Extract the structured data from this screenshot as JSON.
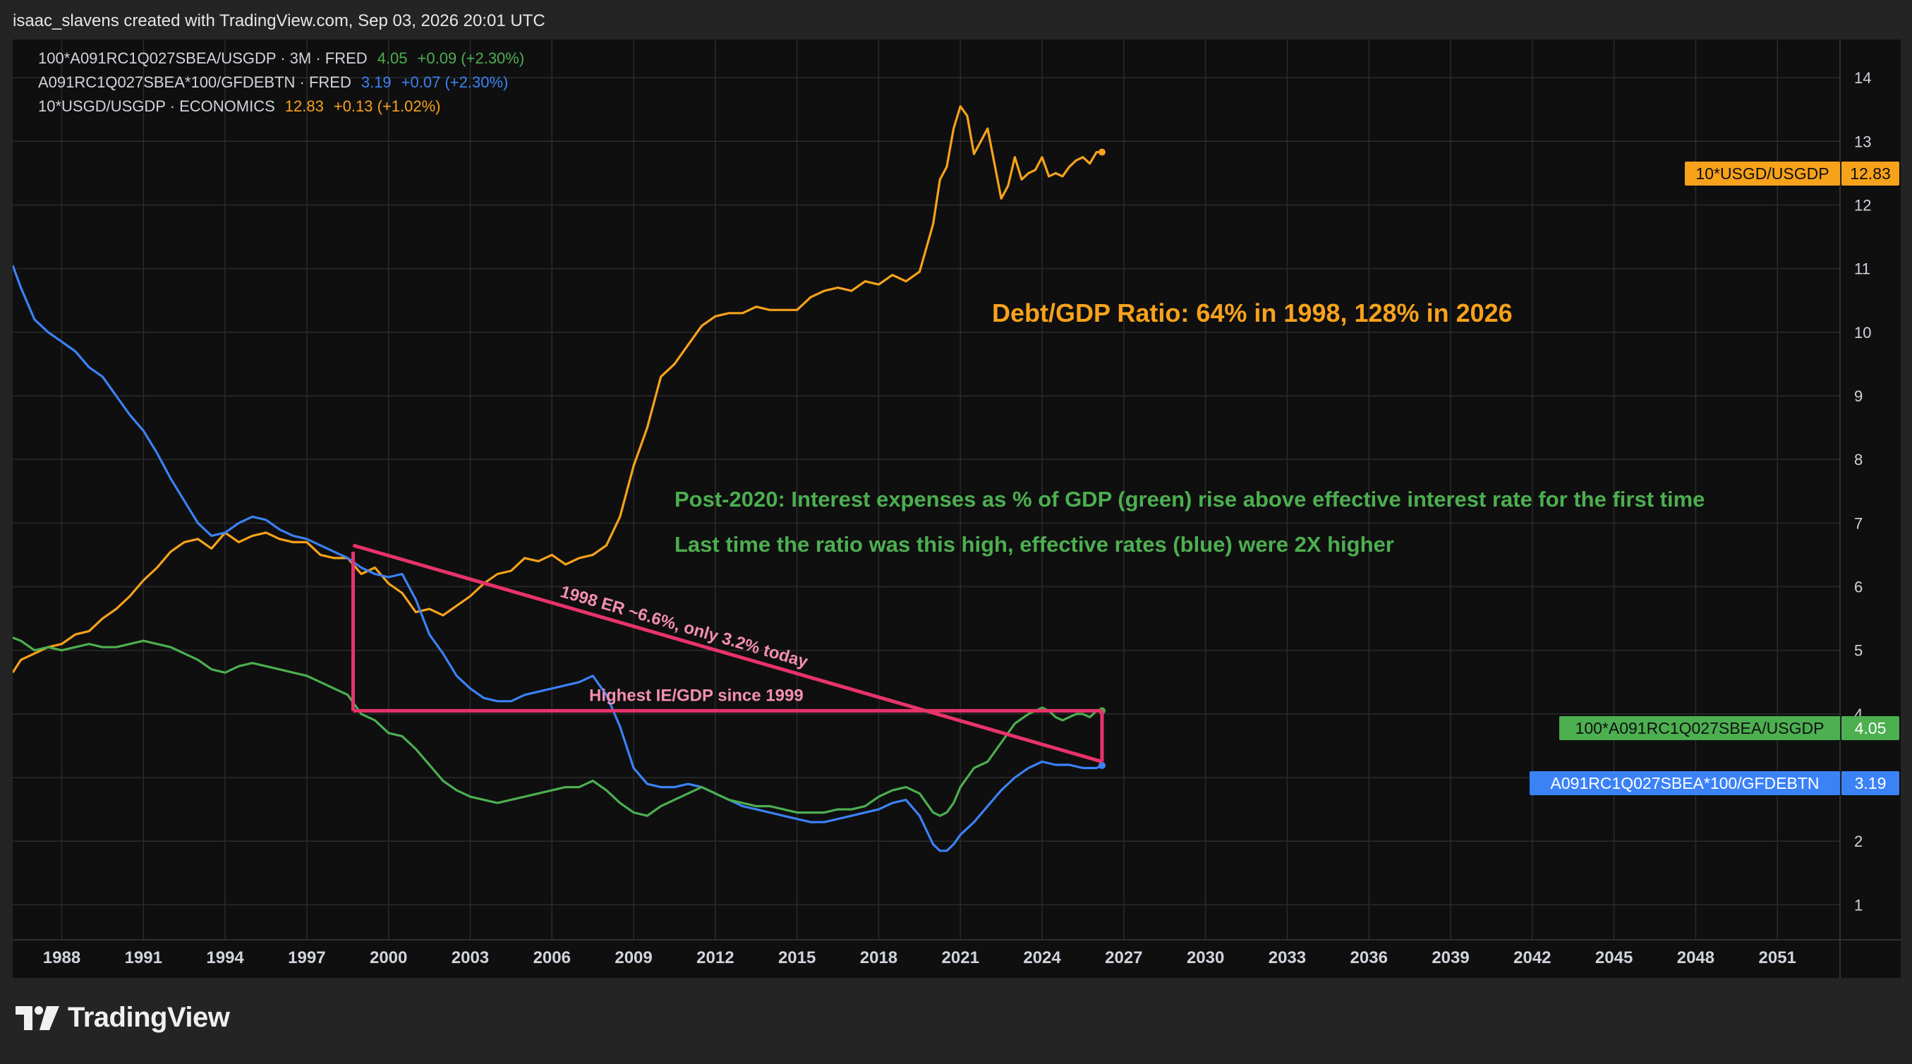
{
  "header": {
    "credit": "isaac_slavens created with TradingView.com, Sep 03, 2026 20:01 UTC"
  },
  "legend": [
    {
      "name": "100*A091RC1Q027SBEA/USGDP · 3M · FRED",
      "value": "4.05",
      "change": "+0.09 (+2.30%)",
      "color": "#4caf50"
    },
    {
      "name": "A091RC1Q027SBEA*100/GFDEBTN · FRED",
      "value": "3.19",
      "change": "+0.07 (+2.30%)",
      "color": "#3b82f6"
    },
    {
      "name": "10*USGD/USGDP · ECONOMICS",
      "value": "12.83",
      "change": "+0.13 (+1.02%)",
      "color": "#f7a21b"
    }
  ],
  "price_labels": [
    {
      "name": "10*USGD/USGDP",
      "value": "12.83",
      "color": "#f7a21b"
    },
    {
      "name": "100*A091RC1Q027SBEA/USGDP",
      "value": "4.05",
      "color": "#4caf50"
    },
    {
      "name": "A091RC1Q027SBEA*100/GFDEBTN",
      "value": "3.19",
      "color": "#3b82f6"
    }
  ],
  "annotations": {
    "debt_text": "Debt/GDP Ratio: 64% in 1998, 128% in 2026",
    "green_text_1": "Post-2020: Interest expenses as % of GDP (green) rise above effective interest rate for the first time",
    "green_text_2": "Last time the ratio was this high, effective rates (blue) were 2X higher",
    "diagonal_text": "1998 ER ~6.6%, only 3.2% today",
    "horizontal_text": "Highest IE/GDP since 1999",
    "debt_color": "#f7a21b",
    "green_color": "#4caf50",
    "drawing_color": "#e8336b",
    "drawing_text_color": "#f48fb1"
  },
  "footer": {
    "logo_text": "TradingView"
  },
  "chart_data": {
    "type": "line",
    "y_ticks": [
      1,
      2,
      3,
      4,
      5,
      6,
      7,
      8,
      9,
      10,
      11,
      12,
      13,
      14
    ],
    "x_ticks": [
      "1988",
      "1991",
      "1994",
      "1997",
      "2000",
      "2003",
      "2006",
      "2009",
      "2012",
      "2015",
      "2018",
      "2021",
      "2024",
      "2027",
      "2030",
      "2033",
      "2036",
      "2039",
      "2042",
      "2045",
      "2048",
      "2051"
    ],
    "xlim": [
      1986.2,
      2053.3
    ],
    "ylim": [
      0.45,
      14.6
    ],
    "series": [
      {
        "name": "10*USGD/USGDP",
        "color": "#f7a21b",
        "x": [
          1986.2,
          1986.5,
          1987,
          1987.5,
          1988,
          1988.5,
          1989,
          1989.5,
          1990,
          1990.5,
          1991,
          1991.5,
          1992,
          1992.5,
          1993,
          1993.5,
          1994,
          1994.5,
          1995,
          1995.5,
          1996,
          1996.5,
          1997,
          1997.5,
          1998,
          1998.5,
          1999,
          1999.5,
          2000,
          2000.5,
          2001,
          2001.5,
          2002,
          2002.5,
          2003,
          2003.5,
          2004,
          2004.5,
          2005,
          2005.5,
          2006,
          2006.5,
          2007,
          2007.5,
          2008,
          2008.5,
          2009,
          2009.5,
          2010,
          2010.5,
          2011,
          2011.5,
          2012,
          2012.5,
          2013,
          2013.5,
          2014,
          2014.5,
          2015,
          2015.5,
          2016,
          2016.5,
          2017,
          2017.5,
          2018,
          2018.5,
          2019,
          2019.5,
          2020,
          2020.25,
          2020.5,
          2020.75,
          2021,
          2021.25,
          2021.5,
          2021.75,
          2022,
          2022.25,
          2022.5,
          2022.75,
          2023,
          2023.25,
          2023.5,
          2023.75,
          2024,
          2024.25,
          2024.5,
          2024.75,
          2025,
          2025.25,
          2025.5,
          2025.75,
          2026,
          2026.2
        ],
        "values": [
          4.65,
          4.85,
          4.95,
          5.05,
          5.1,
          5.25,
          5.3,
          5.5,
          5.65,
          5.85,
          6.1,
          6.3,
          6.55,
          6.7,
          6.75,
          6.6,
          6.85,
          6.7,
          6.8,
          6.85,
          6.75,
          6.7,
          6.7,
          6.5,
          6.45,
          6.45,
          6.2,
          6.3,
          6.05,
          5.9,
          5.6,
          5.65,
          5.55,
          5.7,
          5.85,
          6.05,
          6.2,
          6.25,
          6.45,
          6.4,
          6.5,
          6.35,
          6.45,
          6.5,
          6.65,
          7.1,
          7.9,
          8.5,
          9.3,
          9.5,
          9.8,
          10.1,
          10.25,
          10.3,
          10.3,
          10.4,
          10.35,
          10.35,
          10.35,
          10.55,
          10.65,
          10.7,
          10.65,
          10.8,
          10.75,
          10.9,
          10.8,
          10.95,
          11.7,
          12.4,
          12.6,
          13.2,
          13.55,
          13.4,
          12.8,
          13.0,
          13.2,
          12.65,
          12.1,
          12.3,
          12.75,
          12.4,
          12.5,
          12.55,
          12.75,
          12.45,
          12.5,
          12.45,
          12.6,
          12.7,
          12.75,
          12.65,
          12.83,
          12.83
        ]
      },
      {
        "name": "A091RC1Q027SBEA*100/GFDEBTN",
        "color": "#3b82f6",
        "x": [
          1986.2,
          1986.5,
          1987,
          1987.5,
          1988,
          1988.5,
          1989,
          1989.5,
          1990,
          1990.5,
          1991,
          1991.5,
          1992,
          1992.5,
          1993,
          1993.5,
          1994,
          1994.5,
          1995,
          1995.5,
          1996,
          1996.5,
          1997,
          1997.5,
          1998,
          1998.5,
          1999,
          1999.5,
          2000,
          2000.5,
          2001,
          2001.5,
          2002,
          2002.5,
          2003,
          2003.5,
          2004,
          2004.5,
          2005,
          2005.5,
          2006,
          2006.5,
          2007,
          2007.5,
          2008,
          2008.5,
          2009,
          2009.5,
          2010,
          2010.5,
          2011,
          2011.5,
          2012,
          2012.5,
          2013,
          2013.5,
          2014,
          2014.5,
          2015,
          2015.5,
          2016,
          2016.5,
          2017,
          2017.5,
          2018,
          2018.5,
          2019,
          2019.5,
          2020,
          2020.25,
          2020.5,
          2020.75,
          2021,
          2021.5,
          2022,
          2022.5,
          2023,
          2023.5,
          2024,
          2024.5,
          2025,
          2025.5,
          2026,
          2026.2
        ],
        "values": [
          11.05,
          10.7,
          10.2,
          10.0,
          9.85,
          9.7,
          9.45,
          9.3,
          9.0,
          8.7,
          8.45,
          8.1,
          7.7,
          7.35,
          7.0,
          6.8,
          6.85,
          7.0,
          7.1,
          7.05,
          6.9,
          6.8,
          6.75,
          6.65,
          6.55,
          6.45,
          6.3,
          6.2,
          6.15,
          6.2,
          5.8,
          5.25,
          4.95,
          4.6,
          4.4,
          4.25,
          4.2,
          4.2,
          4.3,
          4.35,
          4.4,
          4.45,
          4.5,
          4.6,
          4.3,
          3.8,
          3.15,
          2.9,
          2.85,
          2.85,
          2.9,
          2.85,
          2.75,
          2.65,
          2.55,
          2.5,
          2.45,
          2.4,
          2.35,
          2.3,
          2.3,
          2.35,
          2.4,
          2.45,
          2.5,
          2.6,
          2.65,
          2.4,
          1.95,
          1.85,
          1.85,
          1.95,
          2.1,
          2.3,
          2.55,
          2.8,
          3.0,
          3.15,
          3.25,
          3.2,
          3.2,
          3.15,
          3.15,
          3.19
        ]
      },
      {
        "name": "100*A091RC1Q027SBEA/USGDP",
        "color": "#4caf50",
        "x": [
          1986.2,
          1986.5,
          1987,
          1987.5,
          1988,
          1988.5,
          1989,
          1989.5,
          1990,
          1990.5,
          1991,
          1991.5,
          1992,
          1992.5,
          1993,
          1993.5,
          1994,
          1994.5,
          1995,
          1995.5,
          1996,
          1996.5,
          1997,
          1997.5,
          1998,
          1998.5,
          1999,
          1999.5,
          2000,
          2000.5,
          2001,
          2001.5,
          2002,
          2002.5,
          2003,
          2003.5,
          2004,
          2004.5,
          2005,
          2005.5,
          2006,
          2006.5,
          2007,
          2007.5,
          2008,
          2008.5,
          2009,
          2009.5,
          2010,
          2010.5,
          2011,
          2011.5,
          2012,
          2012.5,
          2013,
          2013.5,
          2014,
          2014.5,
          2015,
          2015.5,
          2016,
          2016.5,
          2017,
          2017.5,
          2018,
          2018.5,
          2019,
          2019.5,
          2020,
          2020.25,
          2020.5,
          2020.75,
          2021,
          2021.5,
          2022,
          2022.5,
          2023,
          2023.5,
          2024,
          2024.25,
          2024.5,
          2024.75,
          2025,
          2025.25,
          2025.5,
          2025.75,
          2026,
          2026.2
        ],
        "values": [
          5.2,
          5.15,
          5.0,
          5.05,
          5.0,
          5.05,
          5.1,
          5.05,
          5.05,
          5.1,
          5.15,
          5.1,
          5.05,
          4.95,
          4.85,
          4.7,
          4.65,
          4.75,
          4.8,
          4.75,
          4.7,
          4.65,
          4.6,
          4.5,
          4.4,
          4.3,
          4.0,
          3.9,
          3.7,
          3.65,
          3.45,
          3.2,
          2.95,
          2.8,
          2.7,
          2.65,
          2.6,
          2.65,
          2.7,
          2.75,
          2.8,
          2.85,
          2.85,
          2.95,
          2.8,
          2.6,
          2.45,
          2.4,
          2.55,
          2.65,
          2.75,
          2.85,
          2.75,
          2.65,
          2.6,
          2.55,
          2.55,
          2.5,
          2.45,
          2.45,
          2.45,
          2.5,
          2.5,
          2.55,
          2.7,
          2.8,
          2.85,
          2.75,
          2.45,
          2.4,
          2.45,
          2.6,
          2.85,
          3.15,
          3.25,
          3.55,
          3.85,
          4.0,
          4.1,
          4.05,
          3.95,
          3.9,
          3.95,
          4.0,
          4.0,
          3.95,
          4.05,
          4.05
        ]
      }
    ],
    "drawings": {
      "horizontal_line": {
        "x1": 1998.7,
        "x2": 2026.2,
        "y": 4.05
      },
      "vertical_left": {
        "x": 1998.7,
        "y1": 4.05,
        "y2": 6.55
      },
      "diagonal": {
        "x1": 1998.7,
        "y1": 6.65,
        "x2": 2026.2,
        "y2": 3.25
      },
      "vertical_right": {
        "x": 2026.2,
        "y1": 4.05,
        "y2": 3.25
      }
    }
  }
}
